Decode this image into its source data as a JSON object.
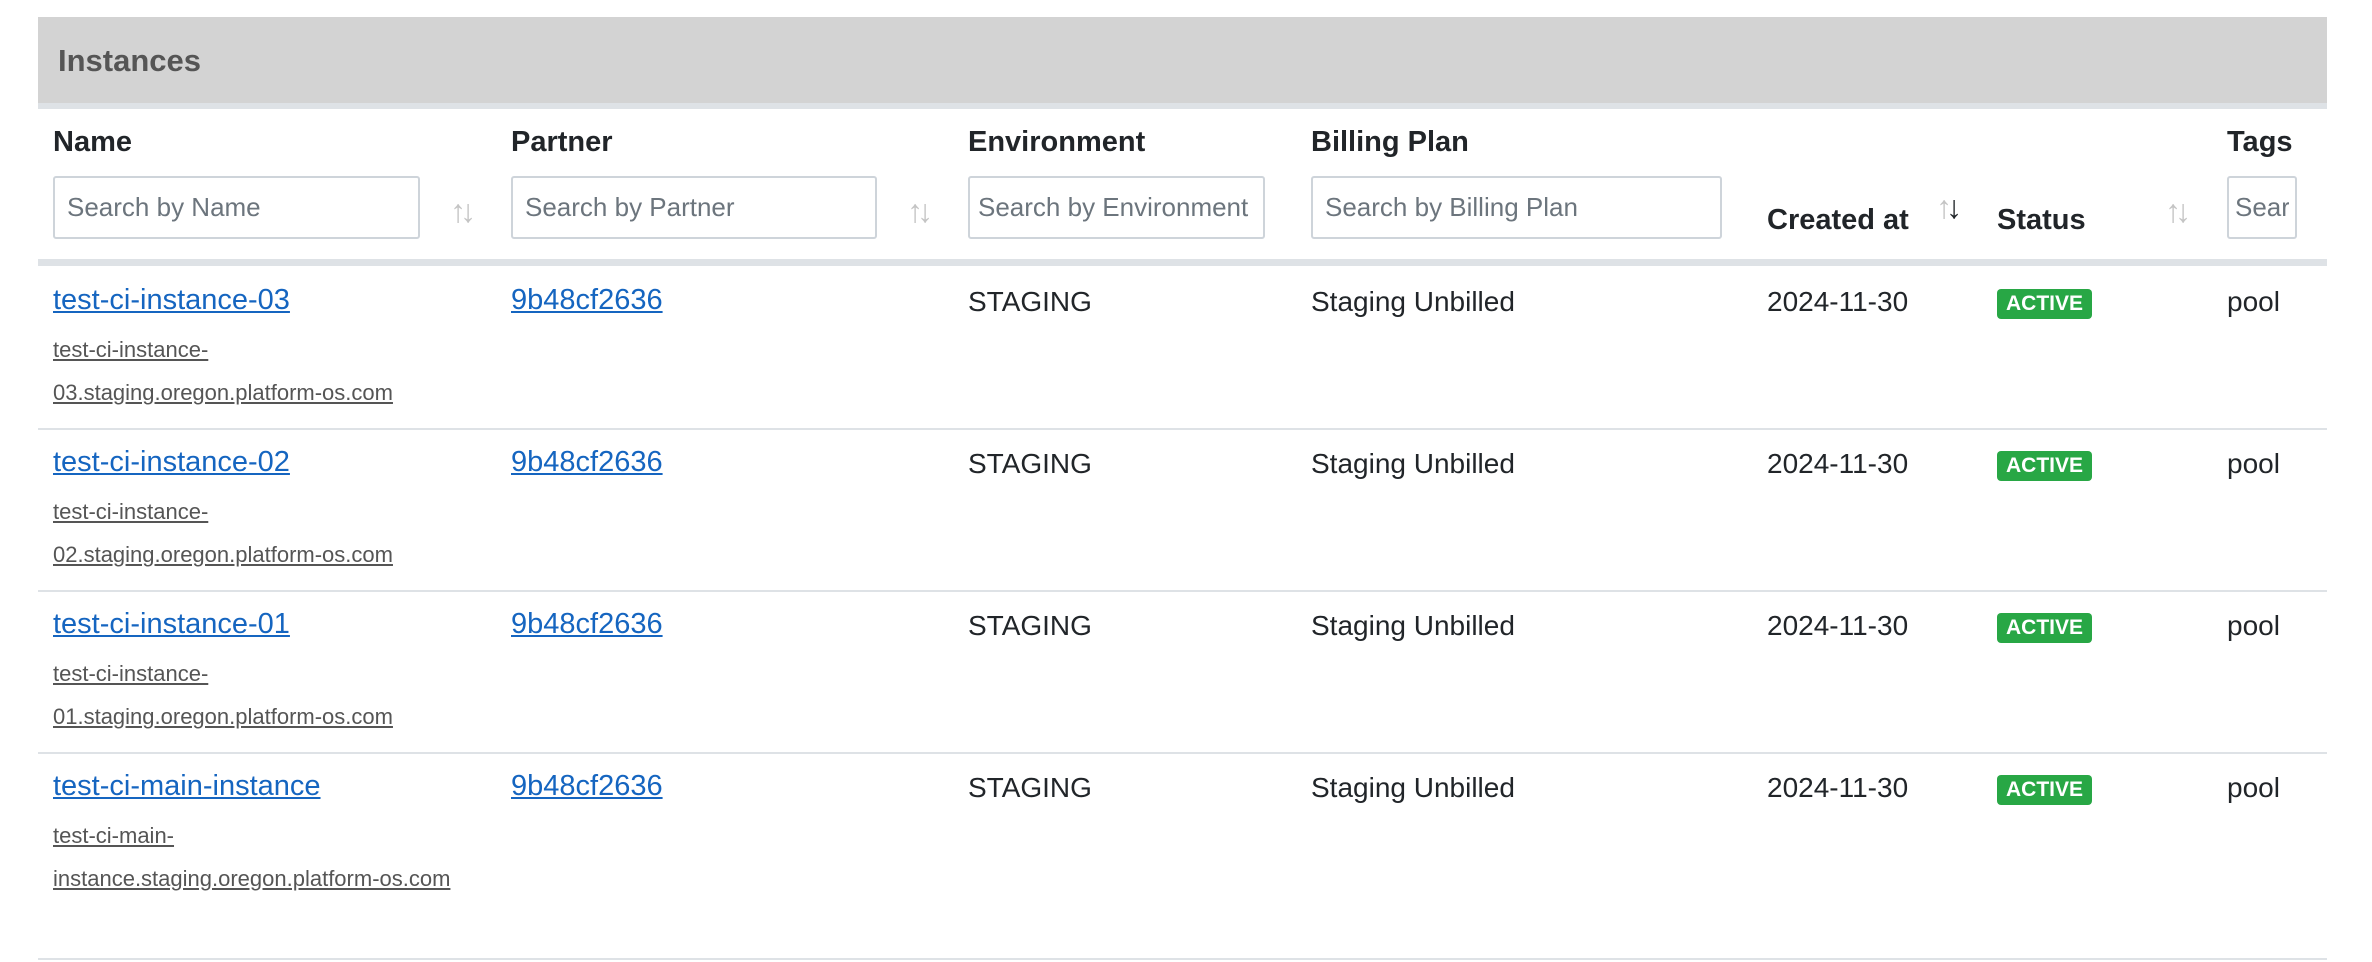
{
  "panel": {
    "title": "Instances"
  },
  "columns": {
    "name": {
      "label": "Name",
      "placeholder": "Search by Name"
    },
    "partner": {
      "label": "Partner",
      "placeholder": "Search by Partner"
    },
    "environment": {
      "label": "Environment",
      "placeholder": "Search by Environment"
    },
    "billing_plan": {
      "label": "Billing Plan",
      "placeholder": "Search by Billing Plan"
    },
    "created_at": {
      "label": "Created at",
      "sort": "descending"
    },
    "status": {
      "label": "Status"
    },
    "tags": {
      "label": "Tags",
      "placeholder": "Search by Tags"
    }
  },
  "colors": {
    "link": "#1565c0",
    "active_badge": "#28a745",
    "header_band": "#d3d3d3"
  },
  "rows": [
    {
      "name": "test-ci-instance-03",
      "url": "test-ci-instance-03.staging.oregon.platform-os.com",
      "partner": "9b48cf2636",
      "environment": "STAGING",
      "billing_plan": "Staging Unbilled",
      "created_at": "2024-11-30",
      "status": "ACTIVE",
      "tags": "pool"
    },
    {
      "name": "test-ci-instance-02",
      "url": "test-ci-instance-02.staging.oregon.platform-os.com",
      "partner": "9b48cf2636",
      "environment": "STAGING",
      "billing_plan": "Staging Unbilled",
      "created_at": "2024-11-30",
      "status": "ACTIVE",
      "tags": "pool"
    },
    {
      "name": "test-ci-instance-01",
      "url": "test-ci-instance-01.staging.oregon.platform-os.com",
      "partner": "9b48cf2636",
      "environment": "STAGING",
      "billing_plan": "Staging Unbilled",
      "created_at": "2024-11-30",
      "status": "ACTIVE",
      "tags": "pool"
    },
    {
      "name": "test-ci-main-instance",
      "url": "test-ci-main-instance.staging.oregon.platform-os.com",
      "partner": "9b48cf2636",
      "environment": "STAGING",
      "billing_plan": "Staging Unbilled",
      "created_at": "2024-11-30",
      "status": "ACTIVE",
      "tags": "pool"
    }
  ]
}
